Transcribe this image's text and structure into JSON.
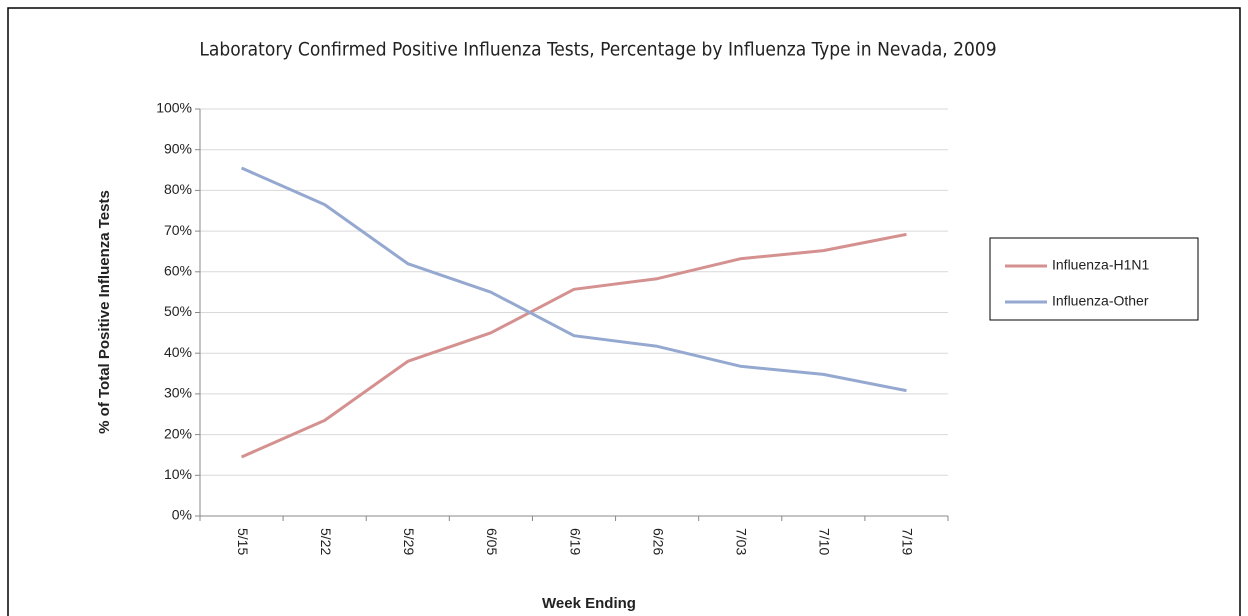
{
  "chart_data": {
    "type": "line",
    "title": "Laboratory Confirmed Positive Influenza Tests, Percentage by Influenza Type in Nevada, 2009",
    "x_label": "Week Ending",
    "y_label": "% of Total Positive Influenza Tests",
    "categories": [
      "5/15",
      "5/22",
      "5/29",
      "6/05",
      "6/19",
      "6/26",
      "7/03",
      "7/10",
      "7/19"
    ],
    "series": [
      {
        "name": "Influenza-H1N1",
        "color": "#d4918f",
        "values": [
          14.5,
          23.5,
          38,
          45,
          55.7,
          58.3,
          63.2,
          65.2,
          69.2
        ]
      },
      {
        "name": "Influenza-Other",
        "color": "#95a9d0",
        "values": [
          85.5,
          76.5,
          62,
          55,
          44.3,
          41.7,
          36.8,
          34.8,
          30.8
        ]
      }
    ],
    "ylim": [
      0,
      100
    ],
    "yticks": [
      {
        "value": 0,
        "label": "0%"
      },
      {
        "value": 10,
        "label": "10%"
      },
      {
        "value": 20,
        "label": "20%"
      },
      {
        "value": 30,
        "label": "30%"
      },
      {
        "value": 40,
        "label": "40%"
      },
      {
        "value": 50,
        "label": "50%"
      },
      {
        "value": 60,
        "label": "60%"
      },
      {
        "value": 70,
        "label": "70%"
      },
      {
        "value": 80,
        "label": "80%"
      },
      {
        "value": 90,
        "label": "90%"
      },
      {
        "value": 100,
        "label": "100%"
      }
    ],
    "grid": true,
    "legend": "right"
  }
}
